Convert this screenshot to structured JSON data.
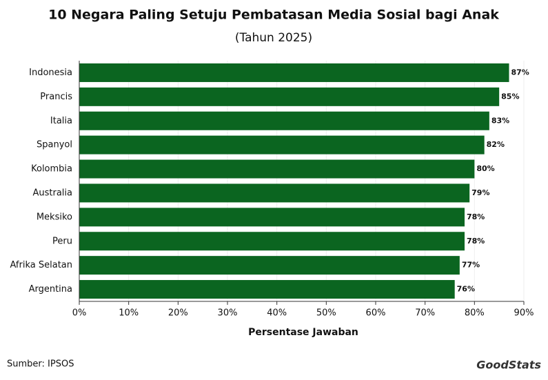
{
  "chart_data": {
    "type": "barh",
    "title": "10 Negara Paling Setuju Pembatasan Media Sosial bagi Anak",
    "subtitle": "(Tahun 2025)",
    "x_label": "Persentase Jawaban",
    "source": "Sumber: IPSOS",
    "logo": "GoodStats",
    "categories": [
      "Indonesia",
      "Prancis",
      "Italia",
      "Spanyol",
      "Kolombia",
      "Australia",
      "Meksiko",
      "Peru",
      "Afrika Selatan",
      "Argentina"
    ],
    "values": [
      87,
      85,
      83,
      82,
      80,
      79,
      78,
      78,
      77,
      76
    ],
    "value_labels": [
      "87%",
      "85%",
      "83%",
      "82%",
      "80%",
      "79%",
      "78%",
      "78%",
      "77%",
      "76%"
    ],
    "color": "#0b6520",
    "xlim": [
      0,
      90
    ],
    "xticks": [
      {
        "value": 0,
        "label": "0%"
      },
      {
        "value": 10,
        "label": "10%"
      },
      {
        "value": 20,
        "label": "20%"
      },
      {
        "value": 30,
        "label": "30%"
      },
      {
        "value": 40,
        "label": "40%"
      },
      {
        "value": 50,
        "label": "50%"
      },
      {
        "value": 60,
        "label": "60%"
      },
      {
        "value": 70,
        "label": "70%"
      },
      {
        "value": 80,
        "label": "80%"
      },
      {
        "value": 90,
        "label": "90%"
      }
    ],
    "grid": true
  }
}
